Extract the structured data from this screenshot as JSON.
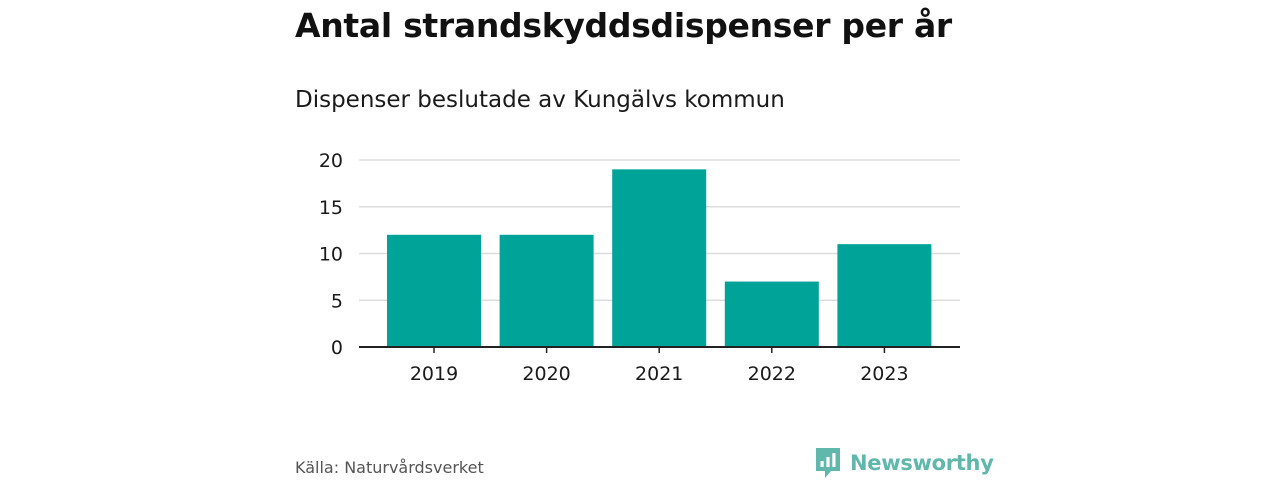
{
  "title": "Antal strandskyddsdispenser per år",
  "subtitle": "Dispenser beslutade av Kungälvs kommun",
  "source": "Källa: Naturvårdsverket",
  "brand": {
    "name": "Newsworthy",
    "logo_icon": "newsworthy-logo-icon"
  },
  "colors": {
    "bar": "#00a398",
    "grid": "#dddddd",
    "axis": "#222222",
    "brand": "#5fb8ab"
  },
  "chart_data": {
    "type": "bar",
    "title": "Antal strandskyddsdispenser per år",
    "subtitle": "Dispenser beslutade av Kungälvs kommun",
    "categories": [
      "2019",
      "2020",
      "2021",
      "2022",
      "2023"
    ],
    "values": [
      12,
      12,
      19,
      7,
      11
    ],
    "xlabel": "",
    "ylabel": "",
    "ylim": [
      0,
      20
    ],
    "yticks": [
      0,
      5,
      10,
      15,
      20
    ],
    "grid": true,
    "legend": "none"
  }
}
